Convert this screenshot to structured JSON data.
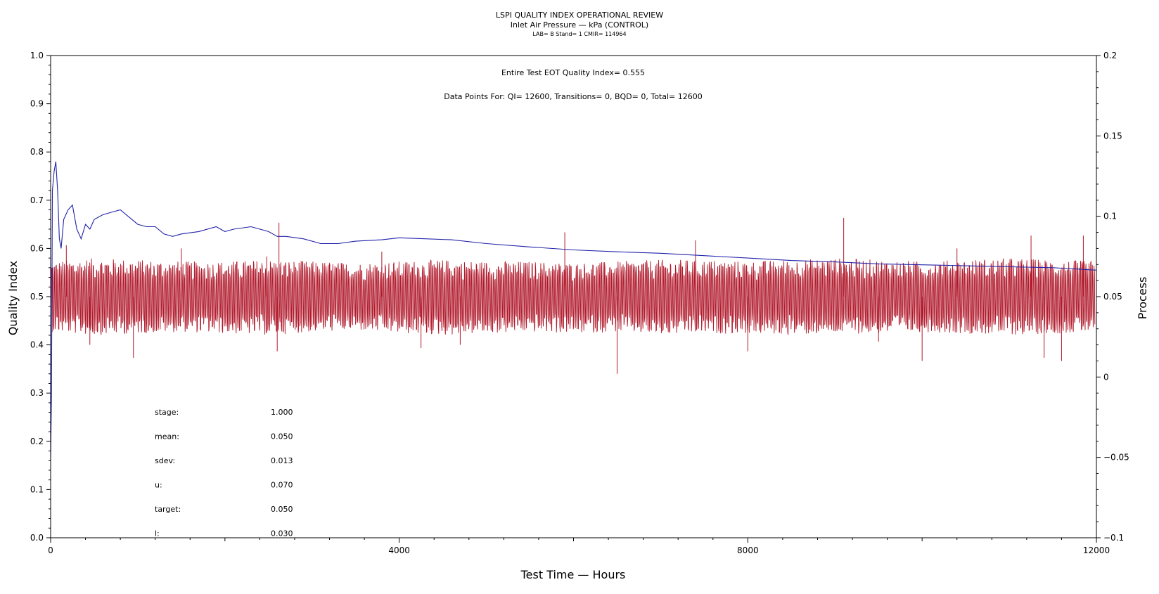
{
  "chart_data": {
    "type": "line",
    "title": "LSPI QUALITY INDEX OPERATIONAL REVIEW",
    "subtitle": "Inlet Air Pressure — kPa (CONTROL)",
    "subtitle2": "LAB= B Stand= 1 CMIR= 114964",
    "xlabel": "Test Time — Hours",
    "ylabel_left": "Quality Index",
    "ylabel_right": "Process",
    "xlim": [
      0,
      12000
    ],
    "ylim_left": [
      0,
      1.0
    ],
    "ylim_right": [
      -0.1,
      0.2
    ],
    "x_ticks": [
      "0",
      "4000",
      "8000",
      "12000"
    ],
    "y_left_ticks": [
      "0.0",
      "0.1",
      "0.2",
      "0.3",
      "0.4",
      "0.5",
      "0.6",
      "0.7",
      "0.8",
      "0.9",
      "1.0"
    ],
    "y_right_ticks": [
      "−0.1",
      "−0.05",
      "0",
      "0.05",
      "0.1",
      "0.15",
      "0.2"
    ],
    "grid": false,
    "annotations": {
      "quality_index": "Entire Test EOT Quality Index=   0.555",
      "data_points": "Data Points For: QI= 12600, Transitions=      0, BQD=      0, Total= 12600"
    },
    "stats": [
      {
        "label": "stage:",
        "value": "1.000"
      },
      {
        "label": "mean:",
        "value": "0.050"
      },
      {
        "label": "sdev:",
        "value": "0.013"
      },
      {
        "label": "u:",
        "value": "0.070"
      },
      {
        "label": "target:",
        "value": "0.050"
      },
      {
        "label": "l:",
        "value": "0.030"
      }
    ],
    "series": [
      {
        "axis": "left",
        "color": "#2222aa",
        "x": [
          0,
          10,
          20,
          40,
          60,
          80,
          100,
          120,
          150,
          200,
          250,
          300,
          350,
          400,
          450,
          500,
          600,
          700,
          800,
          900,
          1000,
          1100,
          1200,
          1300,
          1400,
          1500,
          1700,
          1900,
          2000,
          2100,
          2300,
          2500,
          2600,
          2700,
          2900,
          3100,
          3300,
          3500,
          3800,
          4000,
          4300,
          4600,
          5000,
          5500,
          6000,
          6500,
          7000,
          7500,
          8000,
          8500,
          9000,
          9500,
          10000,
          10500,
          11000,
          11500,
          12000
        ],
        "values": [
          0.16,
          0.3,
          0.72,
          0.76,
          0.78,
          0.72,
          0.62,
          0.6,
          0.66,
          0.68,
          0.69,
          0.64,
          0.62,
          0.65,
          0.64,
          0.66,
          0.67,
          0.675,
          0.68,
          0.665,
          0.65,
          0.645,
          0.645,
          0.63,
          0.625,
          0.63,
          0.635,
          0.645,
          0.635,
          0.64,
          0.645,
          0.635,
          0.625,
          0.625,
          0.62,
          0.61,
          0.61,
          0.615,
          0.618,
          0.622,
          0.62,
          0.618,
          0.61,
          0.603,
          0.597,
          0.593,
          0.59,
          0.585,
          0.58,
          0.575,
          0.572,
          0.568,
          0.566,
          0.564,
          0.562,
          0.56,
          0.555
        ]
      },
      {
        "axis": "right",
        "color": "#b0182a",
        "description_target": 0.05,
        "envelope": {
          "x": [
            0,
            500,
            1000,
            1500,
            2000,
            2500,
            3000,
            3500,
            4000,
            4500,
            5000,
            5500,
            6000,
            6500,
            7000,
            7500,
            8000,
            8500,
            9000,
            9500,
            10000,
            10500,
            11000,
            11500,
            12000
          ],
          "upper": [
            0.072,
            0.074,
            0.073,
            0.072,
            0.072,
            0.073,
            0.072,
            0.071,
            0.072,
            0.073,
            0.072,
            0.072,
            0.071,
            0.072,
            0.073,
            0.073,
            0.072,
            0.073,
            0.074,
            0.073,
            0.072,
            0.073,
            0.074,
            0.073,
            0.072
          ],
          "lower": [
            0.028,
            0.026,
            0.027,
            0.028,
            0.027,
            0.026,
            0.028,
            0.029,
            0.027,
            0.026,
            0.027,
            0.028,
            0.027,
            0.028,
            0.026,
            0.027,
            0.027,
            0.026,
            0.027,
            0.027,
            0.028,
            0.027,
            0.026,
            0.027,
            0.028
          ]
        },
        "spikes": [
          {
            "x": 180,
            "value": 0.082
          },
          {
            "x": 450,
            "value": 0.02
          },
          {
            "x": 950,
            "value": 0.012
          },
          {
            "x": 1500,
            "value": 0.08
          },
          {
            "x": 2480,
            "value": 0.075
          },
          {
            "x": 2600,
            "value": 0.016
          },
          {
            "x": 2620,
            "value": 0.096
          },
          {
            "x": 3800,
            "value": 0.078
          },
          {
            "x": 4250,
            "value": 0.018
          },
          {
            "x": 4700,
            "value": 0.02
          },
          {
            "x": 5900,
            "value": 0.09
          },
          {
            "x": 6500,
            "value": 0.002
          },
          {
            "x": 7400,
            "value": 0.085
          },
          {
            "x": 8000,
            "value": 0.016
          },
          {
            "x": 9100,
            "value": 0.099
          },
          {
            "x": 9500,
            "value": 0.022
          },
          {
            "x": 10400,
            "value": 0.08
          },
          {
            "x": 10000,
            "value": 0.01
          },
          {
            "x": 11250,
            "value": 0.088
          },
          {
            "x": 11600,
            "value": 0.01
          },
          {
            "x": 11400,
            "value": 0.012
          },
          {
            "x": 11850,
            "value": 0.088
          }
        ]
      }
    ]
  }
}
